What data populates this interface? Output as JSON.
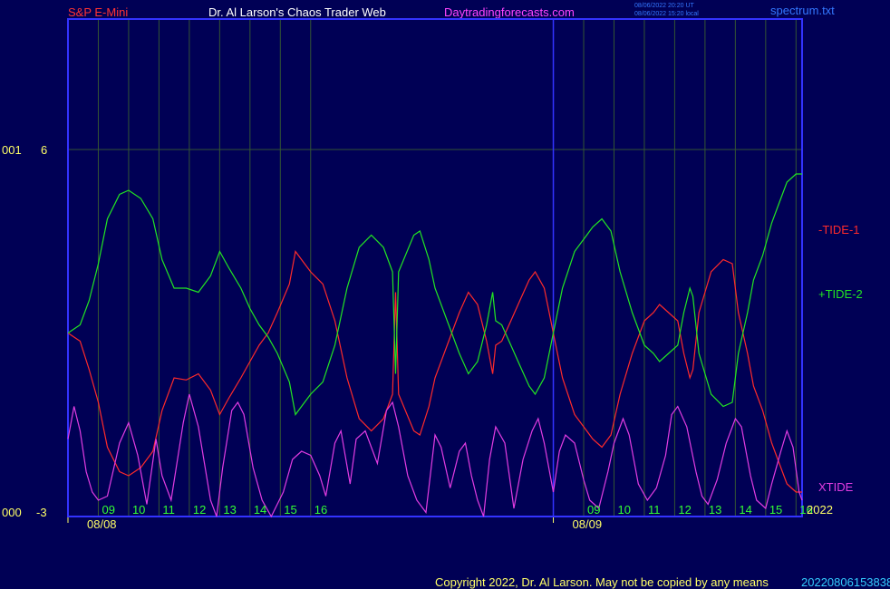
{
  "header": {
    "symbol": "S&P E-Mini",
    "title": "Dr. Al Larson's Chaos Trader Web",
    "site": "Daytradingforecasts.com",
    "stamp_utc": "08/06/2022 20:20 UT",
    "stamp_local": "08/06/2022 15:20 local",
    "file": "spectrum.txt"
  },
  "colors": {
    "background": "#000055",
    "frame": "#3333ff",
    "grid": "#335533",
    "red_series": "#ff2a2a",
    "green_series": "#22e622",
    "magenta_series": "#e23ce2",
    "yellow_text": "#ffff66",
    "green_text": "#33ff33",
    "header_red": "#ff3333",
    "header_magenta": "#ff44ff",
    "header_white": "#ffffff",
    "blue_text": "#3377ff"
  },
  "footer": {
    "copyright": "Copyright 2022, Dr. Al Larson. May not be copied by any means",
    "overlap_text": "20220806153838"
  },
  "chart_data": {
    "type": "line",
    "y_labels": [
      {
        "name": "001",
        "value": "6"
      },
      {
        "name": "000",
        "value": "-3"
      }
    ],
    "x_ticks": [
      "09",
      "10",
      "11",
      "12",
      "13",
      "14",
      "15",
      "16",
      "09",
      "10",
      "11",
      "12",
      "13",
      "14",
      "15",
      "16"
    ],
    "tick_hours": [
      9,
      10,
      11,
      12,
      13,
      14,
      15,
      16,
      25,
      26,
      27,
      28,
      29,
      30,
      31,
      32
    ],
    "date_labels": [
      {
        "label": "08/08",
        "hour": 8
      },
      {
        "label": "08/09",
        "hour": 24
      }
    ],
    "year_label": "2022",
    "xlim_hours": [
      8,
      32.2
    ],
    "ylim": [
      -3,
      9.2
    ],
    "ref_line": 6,
    "day_divider_hour": 24,
    "series": [
      {
        "name": "-TIDE-1",
        "color": "red",
        "points": [
          [
            8.0,
            1.5
          ],
          [
            8.4,
            1.3
          ],
          [
            8.7,
            0.6
          ],
          [
            9.0,
            -0.2
          ],
          [
            9.3,
            -1.3
          ],
          [
            9.7,
            -1.9
          ],
          [
            10.0,
            -2.0
          ],
          [
            10.4,
            -1.8
          ],
          [
            10.8,
            -1.4
          ],
          [
            11.1,
            -0.4
          ],
          [
            11.5,
            0.4
          ],
          [
            11.9,
            0.35
          ],
          [
            12.3,
            0.5
          ],
          [
            12.7,
            0.1
          ],
          [
            13.0,
            -0.5
          ],
          [
            13.3,
            -0.1
          ],
          [
            13.7,
            0.4
          ],
          [
            14.0,
            0.8
          ],
          [
            14.3,
            1.2
          ],
          [
            14.6,
            1.5
          ],
          [
            14.9,
            2.0
          ],
          [
            15.3,
            2.7
          ],
          [
            15.5,
            3.5
          ],
          [
            15.7,
            3.3
          ],
          [
            16.0,
            3.0
          ],
          [
            16.4,
            2.7
          ],
          [
            16.8,
            1.8
          ],
          [
            17.2,
            0.4
          ],
          [
            17.6,
            -0.6
          ],
          [
            18.0,
            -0.9
          ],
          [
            18.4,
            -0.6
          ],
          [
            18.7,
            0.0
          ],
          [
            18.8,
            2.5
          ],
          [
            18.9,
            0.0
          ],
          [
            19.4,
            -0.9
          ],
          [
            19.6,
            -1.0
          ],
          [
            19.9,
            -0.3
          ],
          [
            20.1,
            0.4
          ],
          [
            20.5,
            1.2
          ],
          [
            20.9,
            2.0
          ],
          [
            21.2,
            2.5
          ],
          [
            21.5,
            2.2
          ],
          [
            21.8,
            1.3
          ],
          [
            22.0,
            0.5
          ],
          [
            22.1,
            1.2
          ],
          [
            22.3,
            1.3
          ],
          [
            22.6,
            1.8
          ],
          [
            22.9,
            2.3
          ],
          [
            23.2,
            2.8
          ],
          [
            23.4,
            3.0
          ],
          [
            23.7,
            2.6
          ],
          [
            24.0,
            1.5
          ],
          [
            24.3,
            0.4
          ],
          [
            24.7,
            -0.5
          ],
          [
            25.1,
            -0.9
          ],
          [
            25.3,
            -1.1
          ],
          [
            25.6,
            -1.3
          ],
          [
            25.9,
            -1.0
          ],
          [
            26.2,
            0.0
          ],
          [
            26.6,
            1.0
          ],
          [
            27.0,
            1.8
          ],
          [
            27.3,
            2.0
          ],
          [
            27.5,
            2.2
          ],
          [
            27.8,
            2.0
          ],
          [
            28.1,
            1.8
          ],
          [
            28.3,
            1.0
          ],
          [
            28.5,
            0.4
          ],
          [
            28.6,
            0.6
          ],
          [
            28.8,
            2.0
          ],
          [
            29.0,
            2.5
          ],
          [
            29.2,
            3.0
          ],
          [
            29.6,
            3.3
          ],
          [
            29.9,
            3.2
          ],
          [
            30.1,
            2.0
          ],
          [
            30.4,
            1.0
          ],
          [
            30.6,
            0.2
          ],
          [
            30.9,
            -0.4
          ],
          [
            31.2,
            -1.2
          ],
          [
            31.4,
            -1.6
          ],
          [
            31.7,
            -2.2
          ],
          [
            32.0,
            -2.4
          ],
          [
            32.2,
            -2.4
          ]
        ]
      },
      {
        "name": "+TIDE-2",
        "color": "green",
        "points": [
          [
            8.0,
            1.5
          ],
          [
            8.4,
            1.7
          ],
          [
            8.7,
            2.3
          ],
          [
            9.0,
            3.2
          ],
          [
            9.3,
            4.3
          ],
          [
            9.7,
            4.9
          ],
          [
            10.0,
            5.0
          ],
          [
            10.4,
            4.8
          ],
          [
            10.8,
            4.3
          ],
          [
            11.1,
            3.3
          ],
          [
            11.5,
            2.6
          ],
          [
            11.9,
            2.6
          ],
          [
            12.3,
            2.5
          ],
          [
            12.7,
            2.9
          ],
          [
            13.0,
            3.5
          ],
          [
            13.3,
            3.1
          ],
          [
            13.7,
            2.6
          ],
          [
            14.0,
            2.1
          ],
          [
            14.3,
            1.7
          ],
          [
            14.6,
            1.4
          ],
          [
            14.9,
            1.0
          ],
          [
            15.3,
            0.3
          ],
          [
            15.5,
            -0.5
          ],
          [
            15.7,
            -0.3
          ],
          [
            16.0,
            0.0
          ],
          [
            16.4,
            0.3
          ],
          [
            16.8,
            1.2
          ],
          [
            17.2,
            2.6
          ],
          [
            17.6,
            3.6
          ],
          [
            18.0,
            3.9
          ],
          [
            18.4,
            3.6
          ],
          [
            18.7,
            3.0
          ],
          [
            18.8,
            0.5
          ],
          [
            18.9,
            3.0
          ],
          [
            19.4,
            3.9
          ],
          [
            19.6,
            4.0
          ],
          [
            19.9,
            3.3
          ],
          [
            20.1,
            2.6
          ],
          [
            20.5,
            1.8
          ],
          [
            20.9,
            1.0
          ],
          [
            21.2,
            0.5
          ],
          [
            21.5,
            0.8
          ],
          [
            21.8,
            1.7
          ],
          [
            22.0,
            2.5
          ],
          [
            22.1,
            1.8
          ],
          [
            22.3,
            1.7
          ],
          [
            22.6,
            1.2
          ],
          [
            22.9,
            0.7
          ],
          [
            23.2,
            0.2
          ],
          [
            23.4,
            0.0
          ],
          [
            23.7,
            0.4
          ],
          [
            24.0,
            1.5
          ],
          [
            24.3,
            2.6
          ],
          [
            24.7,
            3.5
          ],
          [
            25.1,
            3.9
          ],
          [
            25.3,
            4.1
          ],
          [
            25.6,
            4.3
          ],
          [
            25.9,
            4.0
          ],
          [
            26.2,
            3.0
          ],
          [
            26.6,
            2.0
          ],
          [
            27.0,
            1.2
          ],
          [
            27.3,
            1.0
          ],
          [
            27.5,
            0.8
          ],
          [
            27.8,
            1.0
          ],
          [
            28.1,
            1.2
          ],
          [
            28.3,
            2.0
          ],
          [
            28.5,
            2.6
          ],
          [
            28.6,
            2.4
          ],
          [
            28.8,
            1.0
          ],
          [
            29.0,
            0.5
          ],
          [
            29.2,
            0.0
          ],
          [
            29.6,
            -0.3
          ],
          [
            29.9,
            -0.2
          ],
          [
            30.1,
            1.0
          ],
          [
            30.4,
            2.0
          ],
          [
            30.6,
            2.8
          ],
          [
            30.9,
            3.4
          ],
          [
            31.2,
            4.2
          ],
          [
            31.4,
            4.6
          ],
          [
            31.7,
            5.2
          ],
          [
            32.0,
            5.4
          ],
          [
            32.2,
            5.4
          ]
        ]
      },
      {
        "name": "XTIDE",
        "color": "magenta",
        "points": [
          [
            8.0,
            -1.1
          ],
          [
            8.2,
            -0.3
          ],
          [
            8.4,
            -0.9
          ],
          [
            8.6,
            -1.9
          ],
          [
            8.8,
            -2.4
          ],
          [
            9.0,
            -2.6
          ],
          [
            9.3,
            -2.5
          ],
          [
            9.7,
            -1.2
          ],
          [
            10.0,
            -0.7
          ],
          [
            10.3,
            -1.5
          ],
          [
            10.6,
            -2.7
          ],
          [
            10.9,
            -1.1
          ],
          [
            11.1,
            -2.0
          ],
          [
            11.4,
            -2.6
          ],
          [
            11.8,
            -0.7
          ],
          [
            12.0,
            0.0
          ],
          [
            12.3,
            -0.8
          ],
          [
            12.7,
            -2.6
          ],
          [
            12.9,
            -3.0
          ],
          [
            13.1,
            -1.8
          ],
          [
            13.4,
            -0.4
          ],
          [
            13.6,
            -0.2
          ],
          [
            13.8,
            -0.5
          ],
          [
            14.1,
            -1.8
          ],
          [
            14.4,
            -2.6
          ],
          [
            14.7,
            -3.0
          ],
          [
            15.1,
            -2.4
          ],
          [
            15.4,
            -1.6
          ],
          [
            15.7,
            -1.4
          ],
          [
            16.0,
            -1.5
          ],
          [
            16.3,
            -2.0
          ],
          [
            16.5,
            -2.5
          ],
          [
            16.8,
            -1.2
          ],
          [
            17.0,
            -0.9
          ],
          [
            17.3,
            -2.2
          ],
          [
            17.5,
            -1.1
          ],
          [
            17.8,
            -0.9
          ],
          [
            18.0,
            -1.3
          ],
          [
            18.2,
            -1.7
          ],
          [
            18.5,
            -0.4
          ],
          [
            18.7,
            -0.2
          ],
          [
            18.9,
            -0.8
          ],
          [
            19.2,
            -2.0
          ],
          [
            19.5,
            -2.6
          ],
          [
            19.8,
            -2.9
          ],
          [
            20.1,
            -1.0
          ],
          [
            20.3,
            -1.3
          ],
          [
            20.6,
            -2.3
          ],
          [
            20.9,
            -1.4
          ],
          [
            21.1,
            -1.2
          ],
          [
            21.3,
            -2.0
          ],
          [
            21.5,
            -2.6
          ],
          [
            21.7,
            -3.0
          ],
          [
            21.9,
            -1.6
          ],
          [
            22.1,
            -0.8
          ],
          [
            22.4,
            -1.2
          ],
          [
            22.7,
            -2.8
          ],
          [
            23.0,
            -1.6
          ],
          [
            23.3,
            -0.9
          ],
          [
            23.5,
            -0.6
          ],
          [
            23.7,
            -1.2
          ],
          [
            24.0,
            -2.4
          ],
          [
            24.2,
            -1.4
          ],
          [
            24.4,
            -1.0
          ],
          [
            24.7,
            -1.2
          ],
          [
            25.0,
            -2.1
          ],
          [
            25.2,
            -2.6
          ],
          [
            25.5,
            -2.8
          ],
          [
            25.8,
            -1.9
          ],
          [
            26.0,
            -1.2
          ],
          [
            26.3,
            -0.6
          ],
          [
            26.5,
            -1.0
          ],
          [
            26.8,
            -2.2
          ],
          [
            27.1,
            -2.6
          ],
          [
            27.4,
            -2.3
          ],
          [
            27.7,
            -1.5
          ],
          [
            27.9,
            -0.5
          ],
          [
            28.1,
            -0.3
          ],
          [
            28.4,
            -0.8
          ],
          [
            28.7,
            -1.9
          ],
          [
            28.9,
            -2.5
          ],
          [
            29.1,
            -2.7
          ],
          [
            29.4,
            -2.1
          ],
          [
            29.7,
            -1.2
          ],
          [
            30.0,
            -0.6
          ],
          [
            30.2,
            -0.8
          ],
          [
            30.5,
            -2.0
          ],
          [
            30.7,
            -2.6
          ],
          [
            31.0,
            -2.8
          ],
          [
            31.2,
            -2.2
          ],
          [
            31.5,
            -1.4
          ],
          [
            31.7,
            -0.9
          ],
          [
            31.9,
            -1.3
          ],
          [
            32.1,
            -2.4
          ],
          [
            32.2,
            -2.6
          ]
        ]
      }
    ]
  }
}
